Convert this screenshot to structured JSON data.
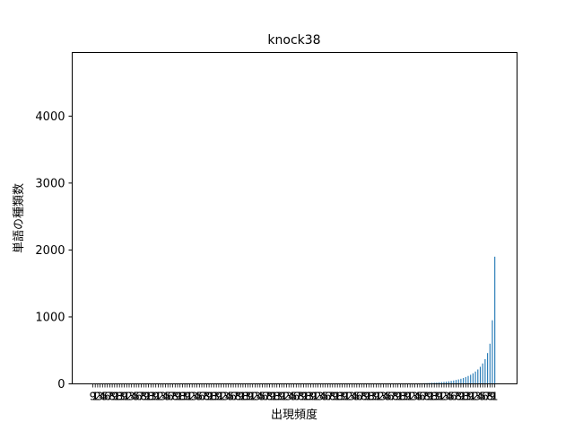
{
  "chart_data": {
    "type": "bar",
    "title": "knock38",
    "xlabel": "出現頻度",
    "ylabel": "単語の種類数",
    "ylim": [
      0,
      4950
    ],
    "yticks": [
      0,
      1000,
      2000,
      3000,
      4000
    ],
    "grid": false,
    "bar_color": "#1f77b4",
    "tail_values": [
      5,
      6,
      7,
      8,
      10,
      12,
      14,
      16,
      18,
      20,
      23,
      26,
      30,
      34,
      38,
      44,
      50,
      58,
      66,
      76,
      88,
      102,
      118,
      136,
      158,
      184,
      215,
      255,
      305,
      370,
      460,
      600,
      950,
      1900
    ],
    "tick_label_samples": [
      "9",
      "1",
      "2",
      "3",
      "4",
      "5",
      "6",
      "7",
      "8",
      "9",
      "1",
      "8",
      "3"
    ]
  }
}
